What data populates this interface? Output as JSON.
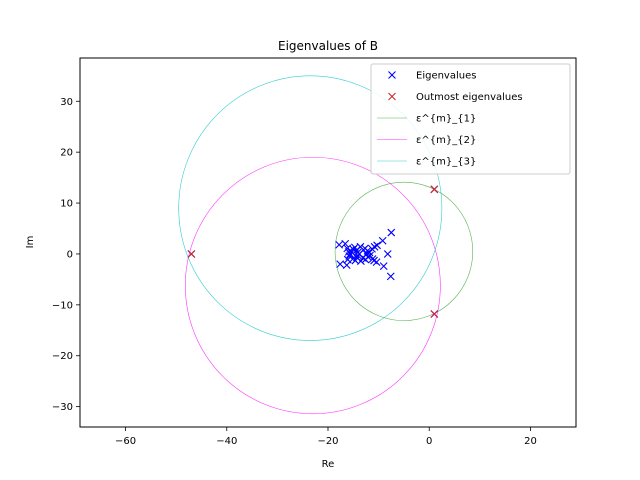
{
  "chart_data": {
    "type": "scatter",
    "title": "Eigenvalues of B",
    "xlabel": "Re",
    "ylabel": "Im",
    "xlim": [
      -69,
      29
    ],
    "ylim": [
      -34,
      38.5
    ],
    "xticks": [
      -60,
      -40,
      -20,
      0,
      20
    ],
    "yticks": [
      -30,
      -20,
      -10,
      0,
      10,
      20,
      30
    ],
    "xtick_labels": [
      "−60",
      "−40",
      "−20",
      "0",
      "20"
    ],
    "ytick_labels": [
      "−30",
      "−20",
      "−10",
      "0",
      "10",
      "20",
      "30"
    ],
    "grid": false,
    "legend_position": "top-right",
    "series": [
      {
        "name": "Eigenvalues",
        "kind": "points",
        "marker": "x",
        "color": "#0000ff",
        "points": [
          [
            -47,
            0
          ],
          [
            1,
            12.7
          ],
          [
            1,
            -11.8
          ],
          [
            -17.8,
            1.8
          ],
          [
            -16.6,
            2.0
          ],
          [
            -17.6,
            -2.0
          ],
          [
            -16.3,
            -2.2
          ],
          [
            -7.5,
            4.2
          ],
          [
            -7.6,
            -4.4
          ],
          [
            -8.2,
            0
          ],
          [
            -9.2,
            2.6
          ],
          [
            -9.0,
            -2.4
          ],
          [
            -10.3,
            1.7
          ],
          [
            -10.4,
            -1.6
          ],
          [
            -11.3,
            1.0
          ],
          [
            -11.2,
            -1.0
          ],
          [
            -12.2,
            0.6
          ],
          [
            -12.1,
            -0.6
          ],
          [
            -13.0,
            0.8
          ],
          [
            -13.1,
            -0.8
          ],
          [
            -14.1,
            0.3
          ],
          [
            -14.1,
            -0.3
          ],
          [
            -15.0,
            0.9
          ],
          [
            -15.0,
            -0.9
          ],
          [
            -15.9,
            0.4
          ],
          [
            -15.8,
            -0.4
          ],
          [
            -16.2,
            1.1
          ],
          [
            -16.1,
            -1.1
          ],
          [
            -15.4,
            0.5
          ],
          [
            -14.7,
            1.3
          ],
          [
            -14.6,
            -1.3
          ],
          [
            -13.6,
            1.4
          ],
          [
            -13.5,
            -1.4
          ],
          [
            -12.7,
            1.1
          ],
          [
            -12.6,
            -1.1
          ],
          [
            -11.8,
            0.3
          ],
          [
            -11.7,
            -0.3
          ],
          [
            -10.8,
            1.4
          ],
          [
            -10.9,
            -1.3
          ],
          [
            -13.8,
            0
          ],
          [
            -15.6,
            0
          ],
          [
            -12.4,
            0
          ],
          [
            -14.4,
            0.7
          ],
          [
            -14.3,
            -0.7
          ]
        ]
      },
      {
        "name": "Outmost eigenvalues",
        "kind": "points",
        "marker": "x",
        "color": "#d62728",
        "points": [
          [
            -47,
            0
          ],
          [
            1,
            12.7
          ],
          [
            1,
            -11.8
          ]
        ]
      },
      {
        "name": "ε^{m}_{1}",
        "kind": "circle",
        "color": "#2ca02c",
        "center": [
          -5,
          0.5
        ],
        "radius": 13.6
      },
      {
        "name": "ε^{m}_{2}",
        "kind": "circle",
        "color": "#ff00ff",
        "center": [
          -23,
          -6.2
        ],
        "radius": 25.2
      },
      {
        "name": "ε^{m}_{3}",
        "kind": "circle",
        "color": "#00bfbf",
        "center": [
          -23.5,
          9
        ],
        "radius": 26
      }
    ]
  }
}
